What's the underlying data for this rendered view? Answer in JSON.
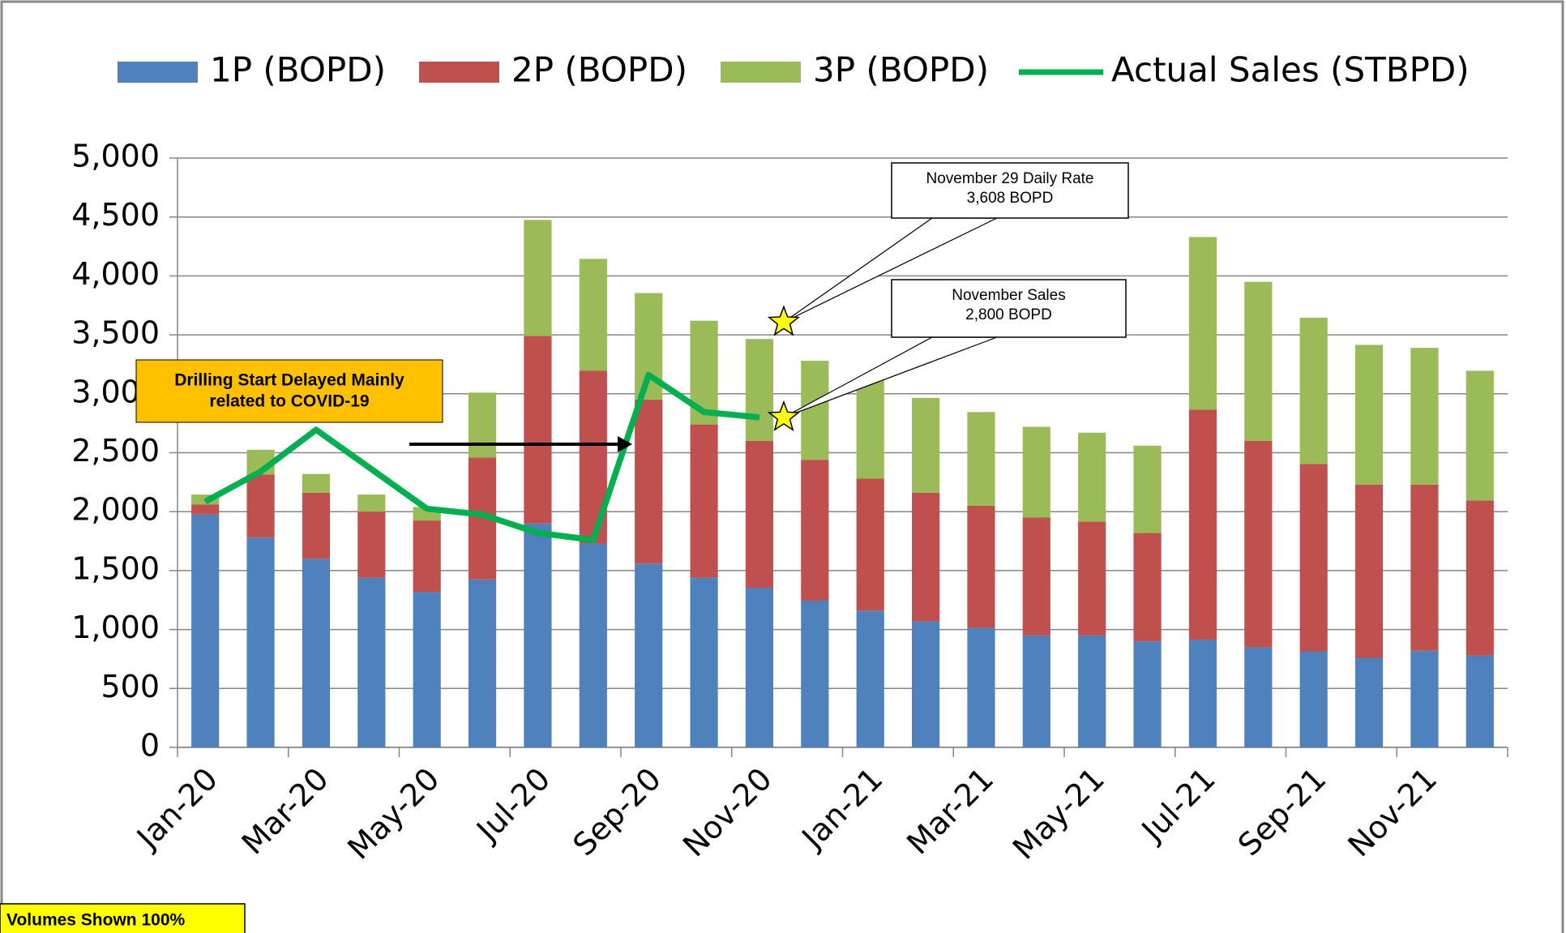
{
  "chart_data": {
    "type": "bar",
    "stacked": true,
    "categories": [
      "Jan-20",
      null,
      "Mar-20",
      null,
      "May-20",
      null,
      "Jul-20",
      null,
      "Sep-20",
      null,
      "Nov-20",
      null,
      "Jan-21",
      null,
      "Mar-21",
      null,
      "May-21",
      null,
      "Jul-21",
      null,
      "Sep-21",
      null,
      "Nov-21",
      null
    ],
    "series": [
      {
        "name": "1P (BOPD)",
        "color": "#4f81bd",
        "values": [
          1975,
          1780,
          1600,
          1440,
          1320,
          1425,
          1900,
          1730,
          1560,
          1440,
          1355,
          1245,
          1160,
          1070,
          1015,
          950,
          950,
          900,
          915,
          850,
          815,
          760,
          820,
          780
        ]
      },
      {
        "name": "2P (BOPD)",
        "color": "#c0504d",
        "values": [
          85,
          535,
          560,
          560,
          605,
          1035,
          1590,
          1465,
          1390,
          1300,
          1245,
          1195,
          1120,
          1090,
          1035,
          1000,
          965,
          920,
          1950,
          1750,
          1590,
          1470,
          1410,
          1315
        ]
      },
      {
        "name": "3P (BOPD)",
        "color": "#9bbb59",
        "values": [
          85,
          210,
          160,
          145,
          115,
          550,
          985,
          950,
          905,
          880,
          865,
          840,
          845,
          805,
          795,
          770,
          755,
          740,
          1465,
          1350,
          1240,
          1185,
          1160,
          1100
        ]
      },
      {
        "name": "Actual Sales (STBPD)",
        "type": "line",
        "color": "#00b050",
        "values": [
          2085,
          2340,
          2695,
          2360,
          2025,
          1975,
          1820,
          1760,
          3160,
          2845,
          2800,
          null,
          null,
          null,
          null,
          null,
          null,
          null,
          null,
          null,
          null,
          null,
          null,
          null
        ]
      }
    ],
    "ylim": [
      0,
      5000
    ],
    "yticks": [
      0,
      500,
      {
        "value": 1000,
        "label": "1,000"
      },
      {
        "value": 1500,
        "label": "1,500"
      },
      {
        "value": 2000,
        "label": "2,000"
      },
      {
        "value": 2500,
        "label": "2,500"
      },
      {
        "value": 3000,
        "label": "3,000"
      },
      {
        "value": 3500,
        "label": "3,500"
      },
      {
        "value": 4000,
        "label": "4,000"
      },
      {
        "value": 4500,
        "label": "4,500"
      },
      {
        "value": 5000,
        "label": "5,000"
      }
    ],
    "grid": true,
    "legend": "top",
    "annotations": [
      {
        "text": [
          "November 29 Daily Rate",
          "3,608 BOPD"
        ],
        "x": "Nov-20",
        "value": 3608
      },
      {
        "text": [
          "November Sales",
          "2,800 BOPD"
        ],
        "x": "Nov-20",
        "value": 2800
      },
      {
        "text": [
          "Drilling Start Delayed Mainly",
          "related to COVID-19"
        ]
      },
      {
        "text": [
          "Volumes Shown 100%"
        ]
      }
    ]
  }
}
